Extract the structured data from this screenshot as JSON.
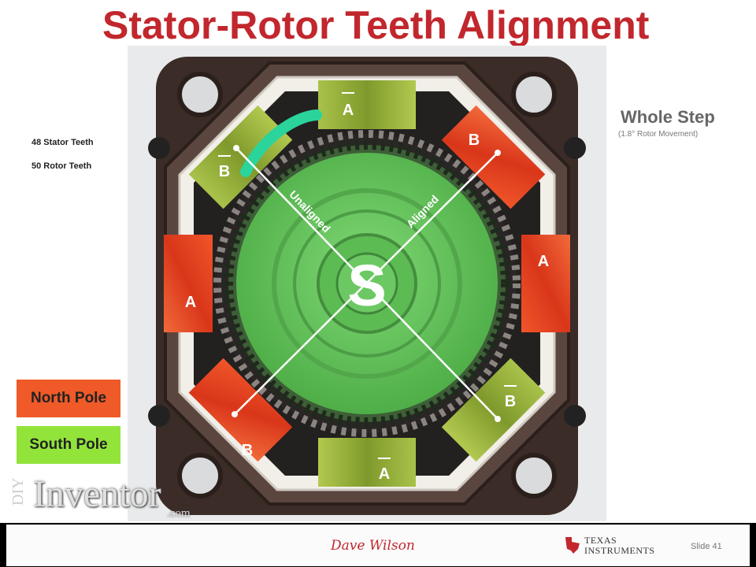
{
  "slide": {
    "title": "Stator-Rotor Teeth Alignment",
    "left_notes": [
      "48 Stator Teeth",
      "50 Rotor Teeth"
    ],
    "step": {
      "title": "Whole Step",
      "subtitle": "(1.8° Rotor Movement)"
    },
    "legend": [
      {
        "label": "North Pole",
        "color": "#ef5a28"
      },
      {
        "label": "South Pole",
        "color": "#92e43a"
      }
    ]
  },
  "diagram": {
    "rotor_pole": "S",
    "axis_labels": {
      "unaligned": "Unaligned",
      "aligned": "Aligned"
    },
    "coil_labels": {
      "top": "A",
      "top_right": "B",
      "right": "A",
      "bottom_right": "B",
      "bottom": "A",
      "bottom_left": "B",
      "left": "A",
      "top_left": "B"
    },
    "colors": {
      "north": "#e8451c",
      "south": "#9bb83a",
      "rotor": "#6fcf62",
      "housing": "#4a3a35"
    }
  },
  "watermark": {
    "prefix": "DIY",
    "main": "Inventor",
    "suffix": ".com"
  },
  "footer": {
    "author": "Dave Wilson",
    "company_line1": "TEXAS",
    "company_line2": "INSTRUMENTS",
    "slide_number": "Slide 41"
  }
}
